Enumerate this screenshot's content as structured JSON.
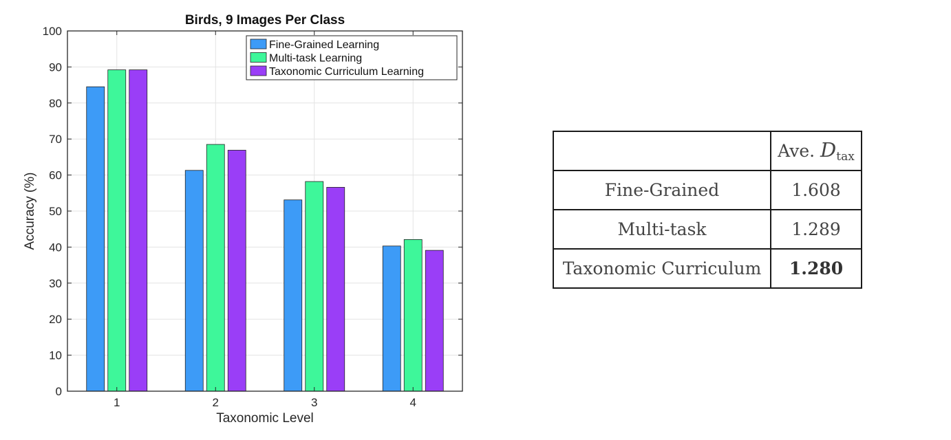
{
  "chart_data": {
    "type": "bar",
    "title": "Birds, 9 Images Per Class",
    "xlabel": "Taxonomic Level",
    "ylabel": "Accuracy (%)",
    "ylim": [
      0,
      100
    ],
    "yticks": [
      0,
      10,
      20,
      30,
      40,
      50,
      60,
      70,
      80,
      90,
      100
    ],
    "categories": [
      "1",
      "2",
      "3",
      "4"
    ],
    "grid": true,
    "legend_position": "top-right",
    "series": [
      {
        "name": "Fine-Grained Learning",
        "color": "#3d9bf7",
        "values": [
          84.5,
          61.3,
          53.1,
          40.3
        ]
      },
      {
        "name": "Multi-task Learning",
        "color": "#3ef79a",
        "values": [
          89.2,
          68.5,
          58.2,
          42.1
        ]
      },
      {
        "name": "Taxonomic Curriculum Learning",
        "color": "#9a3ef7",
        "values": [
          89.2,
          66.9,
          56.6,
          39.1
        ]
      }
    ]
  },
  "table": {
    "header_prefix": "Ave. ",
    "header_symbol": "D",
    "header_subscript": "tax",
    "rows": [
      {
        "label": "Fine-Grained",
        "value": "1.608",
        "bold": false
      },
      {
        "label": "Multi-task",
        "value": "1.289",
        "bold": false
      },
      {
        "label": "Taxonomic Curriculum",
        "value": "1.280",
        "bold": true
      }
    ]
  }
}
